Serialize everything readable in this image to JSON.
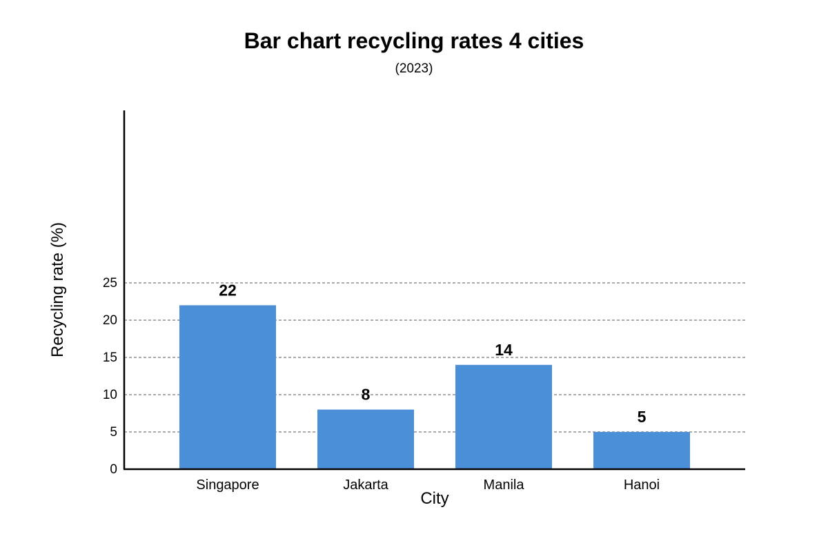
{
  "chart_data": {
    "type": "bar",
    "title": "Bar chart recycling rates 4 cities",
    "subtitle": "(2023)",
    "xlabel": "City",
    "ylabel": "Recycling rate (%)",
    "categories": [
      "Singapore",
      "Jakarta",
      "Manila",
      "Hanoi"
    ],
    "values": [
      22,
      8,
      14,
      5
    ],
    "value_labels": [
      "22",
      "8",
      "14",
      "5"
    ],
    "yticks": [
      0,
      5,
      10,
      15,
      20,
      25
    ],
    "grid": true,
    "bar_color": "#4a8fd8"
  }
}
